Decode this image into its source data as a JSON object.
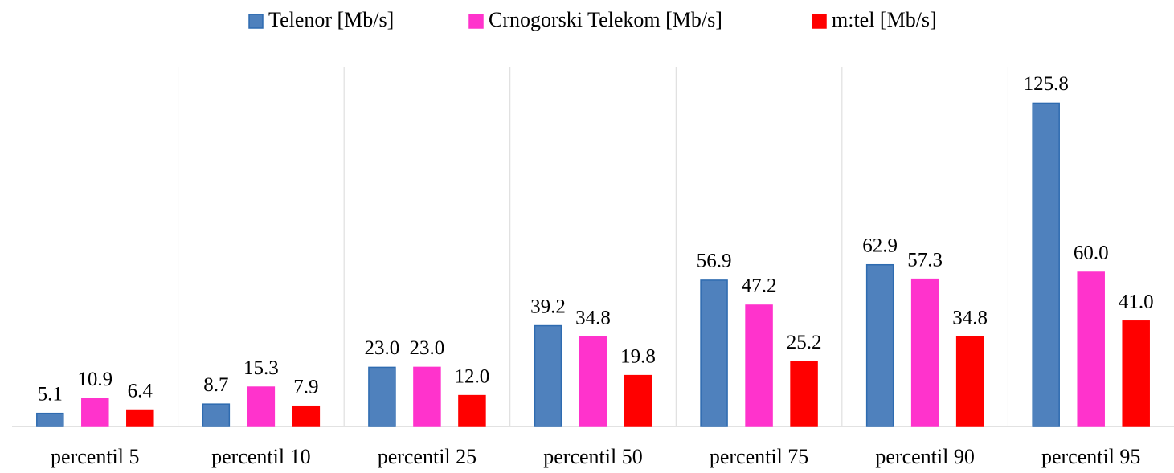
{
  "chart_data": {
    "type": "bar",
    "categories": [
      "percentil 5",
      "percentil 10",
      "percentil 25",
      "percentil 50",
      "percentil 75",
      "percentil 90",
      "percentil 95"
    ],
    "series": [
      {
        "name": "Telenor [Mb/s]",
        "color": "#4f81bd",
        "values": [
          5.1,
          8.7,
          23,
          39.2,
          56.9,
          62.9,
          125.8
        ],
        "value_labels": [
          "5.1",
          "8.7",
          "23.0",
          "39.2",
          "56.9",
          "62.9",
          "125.8"
        ]
      },
      {
        "name": "Crnogorski Telekom [Mb/s]",
        "color": "#ff33cc",
        "values": [
          10.9,
          15.3,
          23,
          34.8,
          47.2,
          57.3,
          60
        ],
        "value_labels": [
          "10.9",
          "15.3",
          "23.0",
          "34.8",
          "47.2",
          "57.3",
          "60.0"
        ]
      },
      {
        "name": "m:tel [Mb/s]",
        "color": "#ff0000",
        "values": [
          6.4,
          7.9,
          12,
          19.8,
          25.2,
          34.8,
          41
        ],
        "value_labels": [
          "6.4",
          "7.9",
          "12.0",
          "19.8",
          "25.2",
          "34.8",
          "41.0"
        ]
      }
    ],
    "ylim": [
      0,
      140
    ],
    "legend": "top"
  }
}
